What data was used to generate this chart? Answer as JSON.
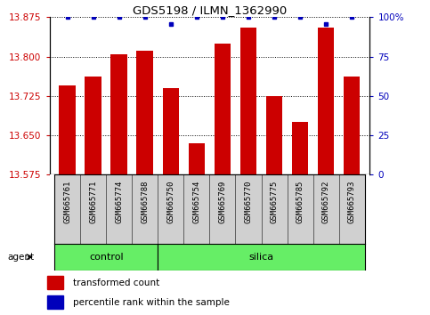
{
  "title": "GDS5198 / ILMN_1362990",
  "samples": [
    "GSM665761",
    "GSM665771",
    "GSM665774",
    "GSM665788",
    "GSM665750",
    "GSM665754",
    "GSM665769",
    "GSM665770",
    "GSM665775",
    "GSM665785",
    "GSM665792",
    "GSM665793"
  ],
  "transformed_counts": [
    13.745,
    13.762,
    13.805,
    13.812,
    13.74,
    13.635,
    13.825,
    13.856,
    13.725,
    13.675,
    13.856,
    13.762
  ],
  "percentile_ranks": [
    100,
    100,
    100,
    100,
    96,
    100,
    100,
    100,
    100,
    100,
    96,
    100
  ],
  "bar_color": "#cc0000",
  "dot_color": "#0000bb",
  "ylim_left": [
    13.575,
    13.875
  ],
  "ylim_right": [
    0,
    100
  ],
  "yticks_left": [
    13.575,
    13.65,
    13.725,
    13.8,
    13.875
  ],
  "yticks_right": [
    0,
    25,
    50,
    75,
    100
  ],
  "control_count": 4,
  "groups": [
    {
      "label": "control",
      "start": 0,
      "end": 4
    },
    {
      "label": "silica",
      "start": 4,
      "end": 12
    }
  ],
  "group_color": "#66ee66",
  "sample_box_color": "#d0d0d0",
  "agent_label": "agent",
  "legend_bar_label": "transformed count",
  "legend_dot_label": "percentile rank within the sample",
  "bar_color_left": "#cc0000",
  "tick_color_right": "#0000bb"
}
